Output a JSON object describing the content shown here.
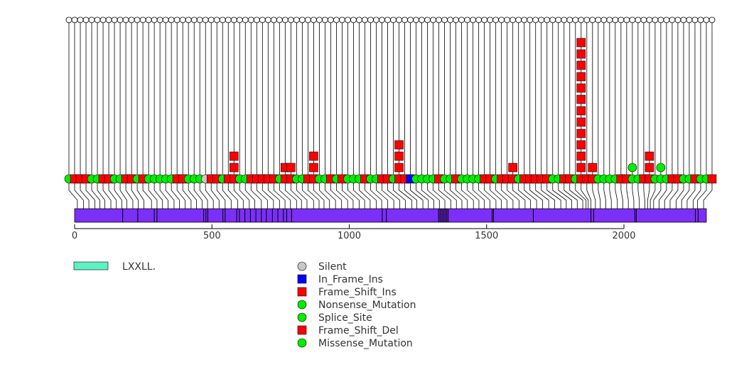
{
  "chart_data": {
    "type": "scatter",
    "description_type": "lollipop",
    "x_axis": {
      "range": [
        0,
        2300
      ],
      "ticks": [
        0,
        500,
        1000,
        1500,
        2000
      ],
      "tick_labels": [
        "0",
        "500",
        "1000",
        "1500",
        "2000"
      ]
    },
    "protein": {
      "length": 2300,
      "color": "#7b2ff7"
    },
    "domain_legend": [
      {
        "label": "LXXLL.",
        "color": "#5ef1c4"
      }
    ],
    "mutation_types": [
      {
        "name": "Silent",
        "shape": "circle",
        "color": "#c8c8c8"
      },
      {
        "name": "In_Frame_Ins",
        "shape": "square",
        "color": "#0000ff"
      },
      {
        "name": "Frame_Shift_Ins",
        "shape": "square",
        "color": "#ff0000"
      },
      {
        "name": "Nonsense_Mutation",
        "shape": "circle",
        "color": "#00ee00"
      },
      {
        "name": "Splice_Site",
        "shape": "circle",
        "color": "#00ee00"
      },
      {
        "name": "Frame_Shift_Del",
        "shape": "square",
        "color": "#ff0000"
      },
      {
        "name": "Missense_Mutation",
        "shape": "circle",
        "color": "#00ee00"
      }
    ],
    "mutations": [
      {
        "position": 10,
        "type": "Missense_Mutation",
        "count": 1
      },
      {
        "position": 32,
        "type": "Frame_Shift_Del",
        "count": 1
      },
      {
        "position": 52,
        "type": "Frame_Shift_Del",
        "count": 1
      },
      {
        "position": 74,
        "type": "Frame_Shift_Del",
        "count": 1
      },
      {
        "position": 92,
        "type": "Missense_Mutation",
        "count": 1
      },
      {
        "position": 110,
        "type": "Missense_Mutation",
        "count": 1
      },
      {
        "position": 132,
        "type": "Frame_Shift_Del",
        "count": 1
      },
      {
        "position": 152,
        "type": "Frame_Shift_Del",
        "count": 1
      },
      {
        "position": 172,
        "type": "Missense_Mutation",
        "count": 1
      },
      {
        "position": 190,
        "type": "Missense_Mutation",
        "count": 1
      },
      {
        "position": 212,
        "type": "Frame_Shift_Del",
        "count": 1
      },
      {
        "position": 232,
        "type": "Frame_Shift_Del",
        "count": 1
      },
      {
        "position": 252,
        "type": "Missense_Mutation",
        "count": 1
      },
      {
        "position": 280,
        "type": "Frame_Shift_Del",
        "count": 1
      },
      {
        "position": 300,
        "type": "Missense_Mutation",
        "count": 1
      },
      {
        "position": 320,
        "type": "Missense_Mutation",
        "count": 1
      },
      {
        "position": 340,
        "type": "Missense_Mutation",
        "count": 1
      },
      {
        "position": 362,
        "type": "Missense_Mutation",
        "count": 1
      },
      {
        "position": 382,
        "type": "Missense_Mutation",
        "count": 1
      },
      {
        "position": 402,
        "type": "Frame_Shift_Del",
        "count": 1
      },
      {
        "position": 424,
        "type": "Frame_Shift_Del",
        "count": 1
      },
      {
        "position": 444,
        "type": "Missense_Mutation",
        "count": 1
      },
      {
        "position": 464,
        "type": "Missense_Mutation",
        "count": 1
      },
      {
        "position": 484,
        "type": "Missense_Mutation",
        "count": 1
      },
      {
        "position": 505,
        "type": "Silent",
        "count": 1
      },
      {
        "position": 526,
        "type": "Frame_Shift_Del",
        "count": 1
      },
      {
        "position": 548,
        "type": "Frame_Shift_Del",
        "count": 1
      },
      {
        "position": 570,
        "type": "Missense_Mutation",
        "count": 1
      },
      {
        "position": 594,
        "type": "Frame_Shift_Del",
        "count": 1
      },
      {
        "position": 614,
        "type": "Frame_Shift_Del",
        "count": 3
      },
      {
        "position": 636,
        "type": "Missense_Mutation",
        "count": 1
      },
      {
        "position": 656,
        "type": "Missense_Mutation",
        "count": 1
      },
      {
        "position": 680,
        "type": "Frame_Shift_Del",
        "count": 1
      },
      {
        "position": 702,
        "type": "Frame_Shift_Del",
        "count": 1
      },
      {
        "position": 724,
        "type": "Frame_Shift_Del",
        "count": 1
      },
      {
        "position": 746,
        "type": "Frame_Shift_Del",
        "count": 1
      },
      {
        "position": 766,
        "type": "Frame_Shift_Del",
        "count": 1
      },
      {
        "position": 786,
        "type": "Missense_Mutation",
        "count": 1
      },
      {
        "position": 808,
        "type": "Frame_Shift_Ins",
        "count": 2
      },
      {
        "position": 826,
        "type": "Frame_Shift_Ins",
        "count": 2
      },
      {
        "position": 846,
        "type": "Missense_Mutation",
        "count": 1
      },
      {
        "position": 870,
        "type": "Missense_Mutation",
        "count": 1
      },
      {
        "position": 890,
        "type": "Frame_Shift_Del",
        "count": 1
      },
      {
        "position": 908,
        "type": "Frame_Shift_Del",
        "count": 3
      },
      {
        "position": 928,
        "type": "Missense_Mutation",
        "count": 1
      },
      {
        "position": 950,
        "type": "Missense_Mutation",
        "count": 1
      },
      {
        "position": 972,
        "type": "Frame_Shift_Del",
        "count": 1
      },
      {
        "position": 994,
        "type": "Missense_Mutation",
        "count": 1
      },
      {
        "position": 1014,
        "type": "Frame_Shift_Del",
        "count": 1
      },
      {
        "position": 1036,
        "type": "Missense_Mutation",
        "count": 1
      },
      {
        "position": 1056,
        "type": "Missense_Mutation",
        "count": 1
      },
      {
        "position": 1076,
        "type": "Missense_Mutation",
        "count": 1
      },
      {
        "position": 1098,
        "type": "Frame_Shift_Del",
        "count": 1
      },
      {
        "position": 1118,
        "type": "Missense_Mutation",
        "count": 1
      },
      {
        "position": 1140,
        "type": "Missense_Mutation",
        "count": 1
      },
      {
        "position": 1162,
        "type": "Frame_Shift_Del",
        "count": 1
      },
      {
        "position": 1184,
        "type": "Frame_Shift_Del",
        "count": 1
      },
      {
        "position": 1204,
        "type": "Missense_Mutation",
        "count": 1
      },
      {
        "position": 1228,
        "type": "Frame_Shift_Del",
        "count": 4
      },
      {
        "position": 1246,
        "type": "Frame_Shift_Del",
        "count": 1
      },
      {
        "position": 1268,
        "type": "In_Frame_Ins",
        "count": 1
      },
      {
        "position": 1288,
        "type": "Missense_Mutation",
        "count": 1
      },
      {
        "position": 1308,
        "type": "Missense_Mutation",
        "count": 1
      },
      {
        "position": 1328,
        "type": "Missense_Mutation",
        "count": 1
      },
      {
        "position": 1348,
        "type": "Missense_Mutation",
        "count": 1
      },
      {
        "position": 1370,
        "type": "Frame_Shift_Del",
        "count": 1
      },
      {
        "position": 1390,
        "type": "Missense_Mutation",
        "count": 1
      },
      {
        "position": 1410,
        "type": "Missense_Mutation",
        "count": 1
      },
      {
        "position": 1430,
        "type": "Frame_Shift_Del",
        "count": 1
      },
      {
        "position": 1452,
        "type": "Missense_Mutation",
        "count": 1
      },
      {
        "position": 1472,
        "type": "Missense_Mutation",
        "count": 1
      },
      {
        "position": 1492,
        "type": "Missense_Mutation",
        "count": 1
      },
      {
        "position": 1512,
        "type": "Missense_Mutation",
        "count": 1
      },
      {
        "position": 1534,
        "type": "Frame_Shift_Del",
        "count": 1
      },
      {
        "position": 1554,
        "type": "Frame_Shift_Del",
        "count": 1
      },
      {
        "position": 1574,
        "type": "Missense_Mutation",
        "count": 1
      },
      {
        "position": 1596,
        "type": "Frame_Shift_Del",
        "count": 1
      },
      {
        "position": 1618,
        "type": "Frame_Shift_Del",
        "count": 1
      },
      {
        "position": 1640,
        "type": "Frame_Shift_Del",
        "count": 2
      },
      {
        "position": 1660,
        "type": "Missense_Mutation",
        "count": 1
      },
      {
        "position": 1682,
        "type": "Frame_Shift_Del",
        "count": 1
      },
      {
        "position": 1704,
        "type": "Frame_Shift_Del",
        "count": 1
      },
      {
        "position": 1726,
        "type": "Frame_Shift_Del",
        "count": 1
      },
      {
        "position": 1748,
        "type": "Frame_Shift_Del",
        "count": 1
      },
      {
        "position": 1770,
        "type": "Frame_Shift_Del",
        "count": 1
      },
      {
        "position": 1790,
        "type": "Missense_Mutation",
        "count": 1
      },
      {
        "position": 1810,
        "type": "Missense_Mutation",
        "count": 1
      },
      {
        "position": 1830,
        "type": "Frame_Shift_Del",
        "count": 1
      },
      {
        "position": 1850,
        "type": "Frame_Shift_Del",
        "count": 1
      },
      {
        "position": 1862,
        "type": "Missense_Mutation",
        "count": 1
      },
      {
        "position": 1870,
        "type": "Frame_Shift_Del",
        "count": 13
      },
      {
        "position": 1880,
        "type": "Frame_Shift_Del",
        "count": 1
      },
      {
        "position": 1896,
        "type": "Frame_Shift_Del",
        "count": 2
      },
      {
        "position": 1914,
        "type": "Missense_Mutation",
        "count": 1
      },
      {
        "position": 1934,
        "type": "Missense_Mutation",
        "count": 1
      },
      {
        "position": 1954,
        "type": "Missense_Mutation",
        "count": 1
      },
      {
        "position": 1976,
        "type": "Missense_Mutation",
        "count": 1
      },
      {
        "position": 1996,
        "type": "Frame_Shift_Del",
        "count": 1
      },
      {
        "position": 2016,
        "type": "Frame_Shift_Del",
        "count": 1
      },
      {
        "position": 2036,
        "type": "Missense_Mutation",
        "count": 2
      },
      {
        "position": 2056,
        "type": "Missense_Mutation",
        "count": 1
      },
      {
        "position": 2076,
        "type": "Frame_Shift_Del",
        "count": 1
      },
      {
        "position": 2086,
        "type": "Frame_Shift_Del",
        "count": 3
      },
      {
        "position": 2096,
        "type": "Missense_Mutation",
        "count": 1
      },
      {
        "position": 2108,
        "type": "Missense_Mutation",
        "count": 2
      },
      {
        "position": 2128,
        "type": "Missense_Mutation",
        "count": 1
      },
      {
        "position": 2148,
        "type": "Frame_Shift_Del",
        "count": 1
      },
      {
        "position": 2168,
        "type": "Frame_Shift_Del",
        "count": 1
      },
      {
        "position": 2190,
        "type": "Missense_Mutation",
        "count": 1
      },
      {
        "position": 2210,
        "type": "Missense_Mutation",
        "count": 1
      },
      {
        "position": 2230,
        "type": "Frame_Shift_Del",
        "count": 1
      },
      {
        "position": 2252,
        "type": "Missense_Mutation",
        "count": 1
      },
      {
        "position": 2268,
        "type": "Missense_Mutation",
        "count": 1
      },
      {
        "position": 2290,
        "type": "Frame_Shift_Del",
        "count": 1
      }
    ],
    "domain_marks": [
      175,
      230,
      290,
      300,
      470,
      478,
      485,
      540,
      548,
      590,
      600,
      620,
      640,
      660,
      680,
      698,
      720,
      740,
      760,
      772,
      790,
      1120,
      1135,
      1325,
      1330,
      1335,
      1340,
      1345,
      1350,
      1355,
      1360,
      1520,
      1525,
      1670,
      1880,
      1890,
      2040,
      2045,
      2260,
      2270
    ]
  }
}
